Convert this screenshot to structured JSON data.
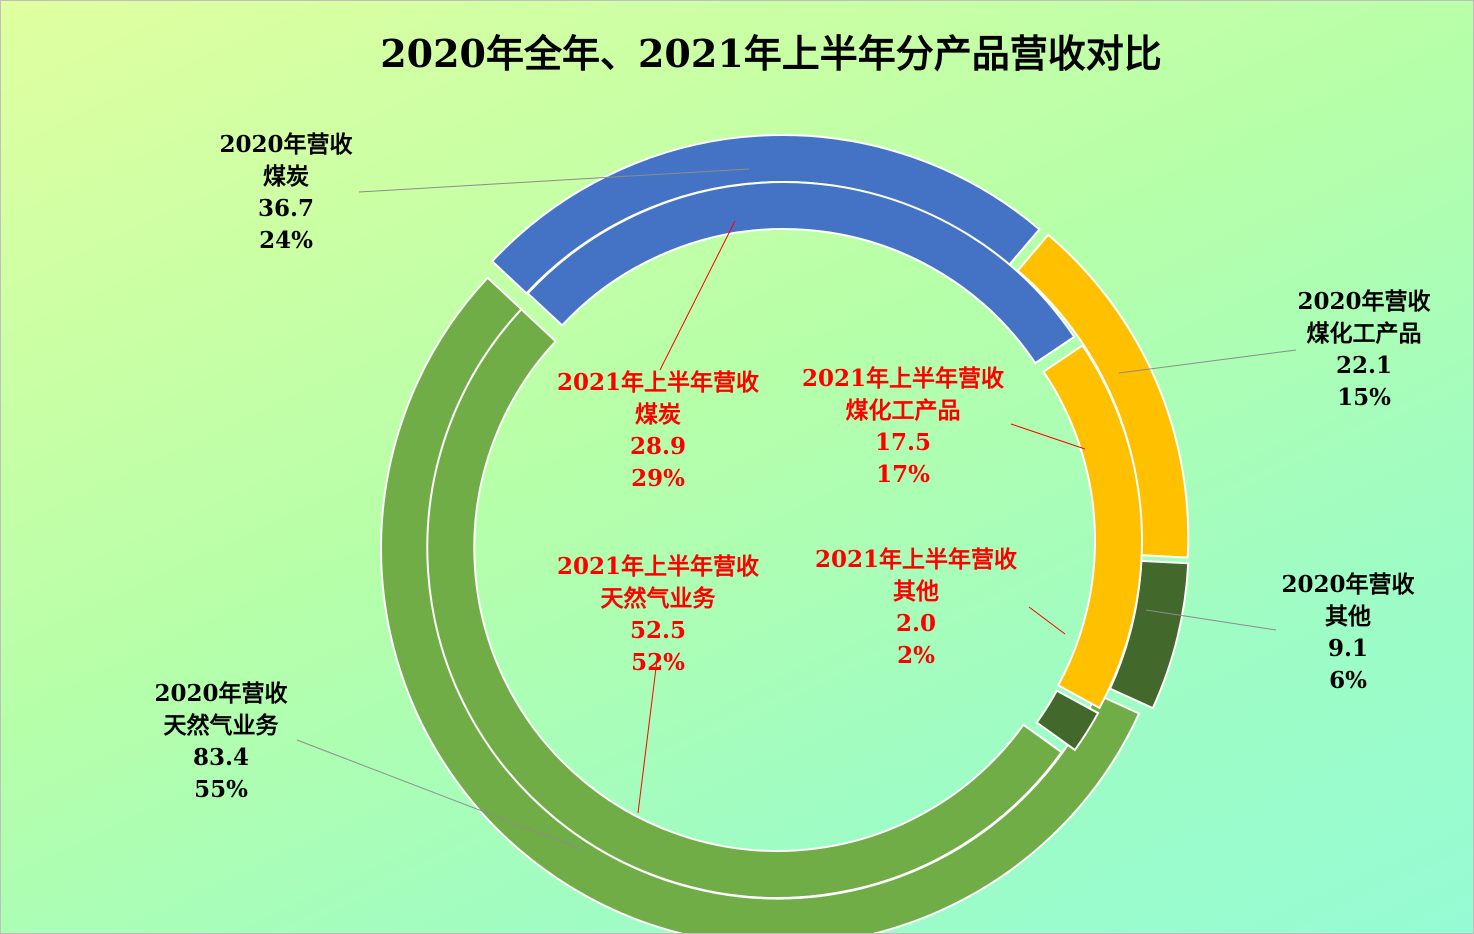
{
  "title": "2020年全年、2021年上半年分产品营收对比",
  "chart_data": {
    "type": "doughnut",
    "title": "2020年全年、2021年上半年分产品营收对比",
    "categories": [
      "煤炭",
      "煤化工产品",
      "其他",
      "天然气业务"
    ],
    "colors": [
      "#4472c4",
      "#ffc000",
      "#43682b",
      "#70ad47"
    ],
    "series": [
      {
        "name": "2020年营收",
        "ring": "outer",
        "values": [
          36.7,
          22.1,
          9.1,
          83.4
        ],
        "value_labels": [
          "36.7",
          "22.1",
          "9.1",
          "83.4"
        ],
        "percents": [
          "24%",
          "15%",
          "6%",
          "55%"
        ]
      },
      {
        "name": "2021年上半年营收",
        "ring": "inner",
        "values": [
          28.9,
          17.5,
          2.0,
          52.5
        ],
        "value_labels": [
          "28.9",
          "17.5",
          "2.0",
          "52.5"
        ],
        "percents": [
          "29%",
          "17%",
          "2%",
          "52%"
        ]
      }
    ]
  }
}
